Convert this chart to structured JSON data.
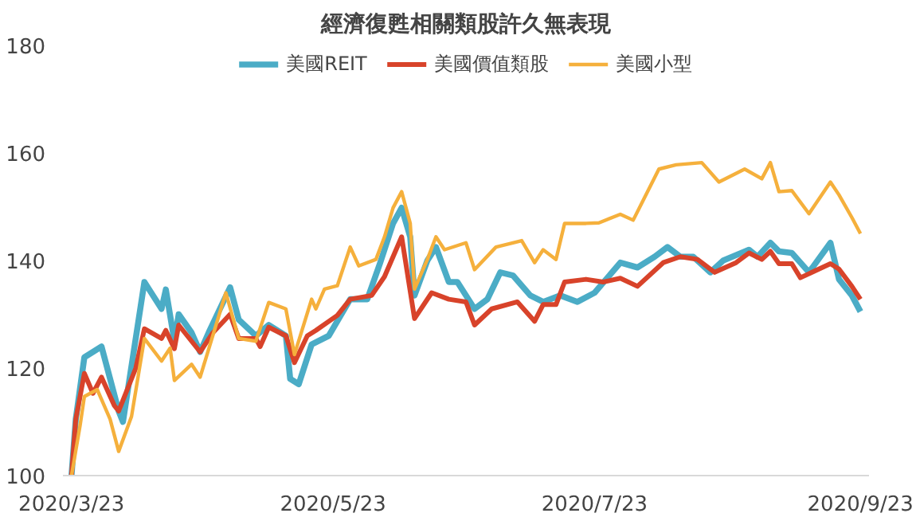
{
  "chart_data": {
    "type": "line",
    "title": "經濟復甦相關類股許久無表現",
    "xlim": [
      "2020-03-21",
      "2020-09-25"
    ],
    "ylim": [
      100,
      180
    ],
    "yticks": [
      100,
      120,
      140,
      160,
      180
    ],
    "xticks": [
      {
        "value": "2020-03-23",
        "label": "2020/3/23"
      },
      {
        "value": "2020-05-23",
        "label": "2020/5/23"
      },
      {
        "value": "2020-07-23",
        "label": "2020/7/23"
      },
      {
        "value": "2020-09-23",
        "label": "2020/9/23"
      }
    ],
    "grid": false,
    "legend": "top",
    "marker": "none",
    "line_style": "solid",
    "series": [
      {
        "name": "美國REIT",
        "color": "#4bacc6",
        "x": [
          "2020-03-23",
          "2020-03-24",
          "2020-03-26",
          "2020-03-30",
          "2020-04-03",
          "2020-04-04",
          "2020-04-09",
          "2020-04-13",
          "2020-04-14",
          "2020-04-16",
          "2020-04-17",
          "2020-04-20",
          "2020-04-22",
          "2020-04-24",
          "2020-04-29",
          "2020-05-01",
          "2020-05-05",
          "2020-05-08",
          "2020-05-12",
          "2020-05-13",
          "2020-05-15",
          "2020-05-18",
          "2020-05-22",
          "2020-05-27",
          "2020-05-31",
          "2020-06-03",
          "2020-06-06",
          "2020-06-08",
          "2020-06-10",
          "2020-06-11",
          "2020-06-14",
          "2020-06-16",
          "2020-06-19",
          "2020-06-21",
          "2020-06-25",
          "2020-06-28",
          "2020-07-01",
          "2020-07-04",
          "2020-07-08",
          "2020-07-11",
          "2020-07-15",
          "2020-07-19",
          "2020-07-23",
          "2020-07-29",
          "2020-08-02",
          "2020-08-06",
          "2020-08-09",
          "2020-08-12",
          "2020-08-15",
          "2020-08-19",
          "2020-08-22",
          "2020-08-28",
          "2020-08-30",
          "2020-09-02",
          "2020-09-04",
          "2020-09-07",
          "2020-09-11",
          "2020-09-16",
          "2020-09-18",
          "2020-09-21",
          "2020-09-23"
        ],
        "values": [
          100,
          110.5,
          122,
          124,
          112,
          110,
          136,
          131,
          134.6,
          125,
          130,
          126.6,
          123,
          126.6,
          135,
          129,
          126,
          128,
          126,
          118,
          117,
          124.4,
          126,
          132.8,
          132.8,
          139.6,
          146.9,
          149.8,
          144.4,
          133.5,
          140,
          142.5,
          136,
          136,
          131,
          132.8,
          137.8,
          137.2,
          133.5,
          132.3,
          133.5,
          132.3,
          134,
          139.6,
          138.7,
          140.7,
          142.5,
          140.7,
          140.7,
          137.8,
          140,
          142,
          140.7,
          143.3,
          141.7,
          141.4,
          137.8,
          143.3,
          136.5,
          133.5,
          130.5
        ]
      },
      {
        "name": "美國價值類股",
        "color": "#d8432a",
        "x": [
          "2020-03-23",
          "2020-03-24",
          "2020-03-26",
          "2020-03-28",
          "2020-03-30",
          "2020-04-02",
          "2020-04-03",
          "2020-04-07",
          "2020-04-09",
          "2020-04-13",
          "2020-04-14",
          "2020-04-16",
          "2020-04-17",
          "2020-04-22",
          "2020-04-25",
          "2020-04-29",
          "2020-05-01",
          "2020-05-05",
          "2020-05-06",
          "2020-05-08",
          "2020-05-12",
          "2020-05-14",
          "2020-05-17",
          "2020-05-19",
          "2020-05-24",
          "2020-05-27",
          "2020-06-01",
          "2020-06-04",
          "2020-06-08",
          "2020-06-11",
          "2020-06-15",
          "2020-06-19",
          "2020-06-23",
          "2020-06-25",
          "2020-06-29",
          "2020-07-05",
          "2020-07-09",
          "2020-07-11",
          "2020-07-14",
          "2020-07-16",
          "2020-07-21",
          "2020-07-25",
          "2020-07-29",
          "2020-08-02",
          "2020-08-08",
          "2020-08-12",
          "2020-08-16",
          "2020-08-20",
          "2020-08-25",
          "2020-08-28",
          "2020-08-31",
          "2020-09-02",
          "2020-09-04",
          "2020-09-07",
          "2020-09-09",
          "2020-09-16",
          "2020-09-18",
          "2020-09-21",
          "2020-09-23"
        ],
        "values": [
          100,
          110.5,
          119,
          115.3,
          118.3,
          113,
          112,
          120,
          127.3,
          125.5,
          127,
          123.6,
          128,
          123,
          126.6,
          130,
          125.5,
          125.5,
          124,
          127.6,
          126,
          121,
          126,
          127,
          129.8,
          132.8,
          133.5,
          137,
          144.4,
          129.2,
          134,
          132.8,
          132.3,
          128,
          131,
          132.3,
          128.7,
          131.8,
          131.8,
          136,
          136.5,
          136,
          136.7,
          135.2,
          139.6,
          140.7,
          140.2,
          137.8,
          139.6,
          141.4,
          140.2,
          141.7,
          139.4,
          139.4,
          136.8,
          139.4,
          138.4,
          135.2,
          132.8
        ]
      },
      {
        "name": "美國小型",
        "color": "#f5b03c",
        "x": [
          "2020-03-23",
          "2020-03-25",
          "2020-03-26",
          "2020-03-29",
          "2020-04-01",
          "2020-04-03",
          "2020-04-06",
          "2020-04-09",
          "2020-04-13",
          "2020-04-15",
          "2020-04-16",
          "2020-04-20",
          "2020-04-22",
          "2020-04-28",
          "2020-05-01",
          "2020-05-05",
          "2020-05-08",
          "2020-05-12",
          "2020-05-14",
          "2020-05-18",
          "2020-05-19",
          "2020-05-21",
          "2020-05-24",
          "2020-05-27",
          "2020-05-29",
          "2020-06-02",
          "2020-06-04",
          "2020-06-06",
          "2020-06-08",
          "2020-06-10",
          "2020-06-11",
          "2020-06-14",
          "2020-06-16",
          "2020-06-18",
          "2020-06-23",
          "2020-06-25",
          "2020-06-30",
          "2020-07-06",
          "2020-07-09",
          "2020-07-11",
          "2020-07-14",
          "2020-07-16",
          "2020-07-21",
          "2020-07-24",
          "2020-07-29",
          "2020-08-01",
          "2020-08-07",
          "2020-08-11",
          "2020-08-17",
          "2020-08-21",
          "2020-08-27",
          "2020-08-31",
          "2020-09-02",
          "2020-09-04",
          "2020-09-07",
          "2020-09-11",
          "2020-09-16",
          "2020-09-18",
          "2020-09-21",
          "2020-09-23"
        ],
        "values": [
          100,
          109.3,
          114.7,
          116,
          110.5,
          104.5,
          111,
          125.5,
          121.3,
          123.7,
          117.7,
          120.7,
          118.3,
          134,
          125.5,
          125,
          132.2,
          131,
          122.5,
          132.8,
          131,
          134.7,
          135.3,
          142.5,
          139,
          140.2,
          144.4,
          149.8,
          152.8,
          146.9,
          134.7,
          140.2,
          144.4,
          142,
          143.3,
          138.3,
          142.5,
          143.7,
          139.6,
          142,
          140.2,
          146.9,
          146.9,
          147,
          148.6,
          147.5,
          157,
          157.8,
          158.2,
          154.6,
          157,
          155.2,
          158.2,
          152.8,
          153,
          148.7,
          154.6,
          152.2,
          148,
          145
        ]
      }
    ]
  }
}
